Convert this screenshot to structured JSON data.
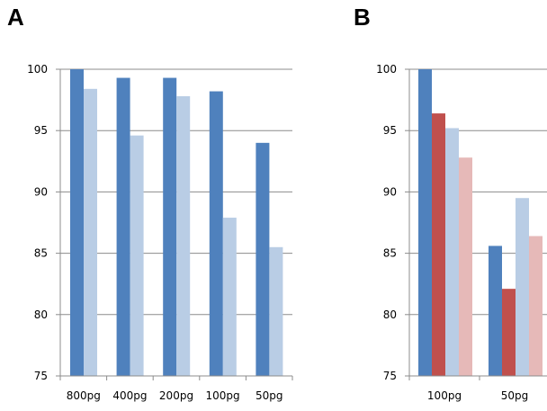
{
  "panels": {
    "a_label": "A",
    "b_label": "B"
  },
  "chart_data": [
    {
      "type": "bar",
      "panel": "A",
      "categories": [
        "800pg",
        "400pg",
        "200pg",
        "100pg",
        "50pg"
      ],
      "series": [
        {
          "values": [
            100,
            99.3,
            99.3,
            98.2,
            94.0
          ],
          "color": "#4f81bd"
        },
        {
          "values": [
            98.4,
            94.6,
            97.8,
            87.9,
            85.5
          ],
          "color": "#b9cde5"
        }
      ],
      "yticks": [
        "75",
        "80",
        "85",
        "90",
        "95",
        "100"
      ],
      "ylim": [
        75,
        100
      ],
      "grid": true,
      "legend": "none"
    },
    {
      "type": "bar",
      "panel": "B",
      "categories": [
        "100pg",
        "50pg"
      ],
      "series": [
        {
          "values": [
            100,
            85.6
          ],
          "color": "#4f81bd"
        },
        {
          "values": [
            96.4,
            82.1
          ],
          "color": "#c0504d"
        },
        {
          "values": [
            95.2,
            89.5
          ],
          "color": "#b9cde5"
        },
        {
          "values": [
            92.8,
            86.4
          ],
          "color": "#e6b9b8"
        }
      ],
      "yticks": [
        "75",
        "80",
        "85",
        "90",
        "95",
        "100"
      ],
      "ylim": [
        75,
        100
      ],
      "grid": true,
      "legend": "none"
    }
  ]
}
